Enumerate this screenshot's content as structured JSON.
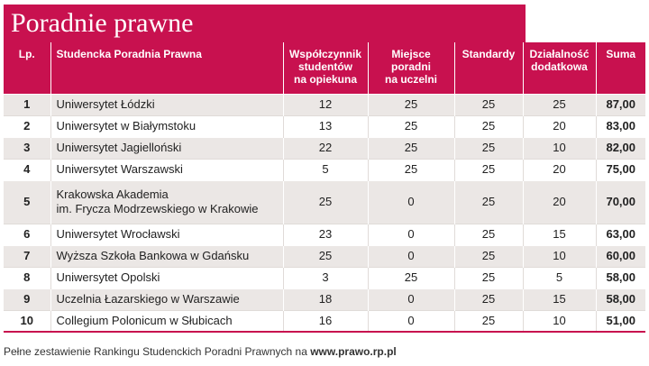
{
  "title": "Poradnie prawne",
  "headers": {
    "lp": "Lp.",
    "name": "Studencka Poradnia Prawna",
    "wspolczynnik": [
      "Współczynnik",
      "studentów",
      "na opiekuna"
    ],
    "miejsce": [
      "Miejsce",
      "poradni",
      "na uczelni"
    ],
    "standardy": "Standardy",
    "dzialalnosc": [
      "Działalność",
      "dodatkowa"
    ],
    "suma": "Suma"
  },
  "rows": [
    {
      "lp": "1",
      "name": [
        "Uniwersytet Łódzki"
      ],
      "wsp": "12",
      "miejsce": "25",
      "std": "25",
      "dzial": "25",
      "suma": "87,00"
    },
    {
      "lp": "2",
      "name": [
        "Uniwersytet w Białymstoku"
      ],
      "wsp": "13",
      "miejsce": "25",
      "std": "25",
      "dzial": "20",
      "suma": "83,00"
    },
    {
      "lp": "3",
      "name": [
        "Uniwersytet Jagielloński"
      ],
      "wsp": "22",
      "miejsce": "25",
      "std": "25",
      "dzial": "10",
      "suma": "82,00"
    },
    {
      "lp": "4",
      "name": [
        "Uniwersytet Warszawski"
      ],
      "wsp": "5",
      "miejsce": "25",
      "std": "25",
      "dzial": "20",
      "suma": "75,00"
    },
    {
      "lp": "5",
      "name": [
        "Krakowska Akademia",
        "im. Frycza Modrzewskiego w Krakowie"
      ],
      "wsp": "25",
      "miejsce": "0",
      "std": "25",
      "dzial": "20",
      "suma": "70,00"
    },
    {
      "lp": "6",
      "name": [
        "Uniwersytet Wrocławski"
      ],
      "wsp": "23",
      "miejsce": "0",
      "std": "25",
      "dzial": "15",
      "suma": "63,00"
    },
    {
      "lp": "7",
      "name": [
        "Wyższa Szkoła Bankowa w Gdańsku"
      ],
      "wsp": "25",
      "miejsce": "0",
      "std": "25",
      "dzial": "10",
      "suma": "60,00"
    },
    {
      "lp": "8",
      "name": [
        "Uniwersytet Opolski"
      ],
      "wsp": "3",
      "miejsce": "25",
      "std": "25",
      "dzial": "5",
      "suma": "58,00"
    },
    {
      "lp": "9",
      "name": [
        "Uczelnia Łazarskiego w Warszawie"
      ],
      "wsp": "18",
      "miejsce": "0",
      "std": "25",
      "dzial": "15",
      "suma": "58,00"
    },
    {
      "lp": "10",
      "name": [
        "Collegium Polonicum w Słubicach"
      ],
      "wsp": "16",
      "miejsce": "0",
      "std": "25",
      "dzial": "10",
      "suma": "51,00"
    }
  ],
  "footer": {
    "text": "Pełne zestawienie Rankingu Studenckich Poradni Prawnych na ",
    "link": "www.prawo.rp.pl"
  },
  "colors": {
    "accent": "#c8114f",
    "row_alt": "#ebe7e5"
  }
}
